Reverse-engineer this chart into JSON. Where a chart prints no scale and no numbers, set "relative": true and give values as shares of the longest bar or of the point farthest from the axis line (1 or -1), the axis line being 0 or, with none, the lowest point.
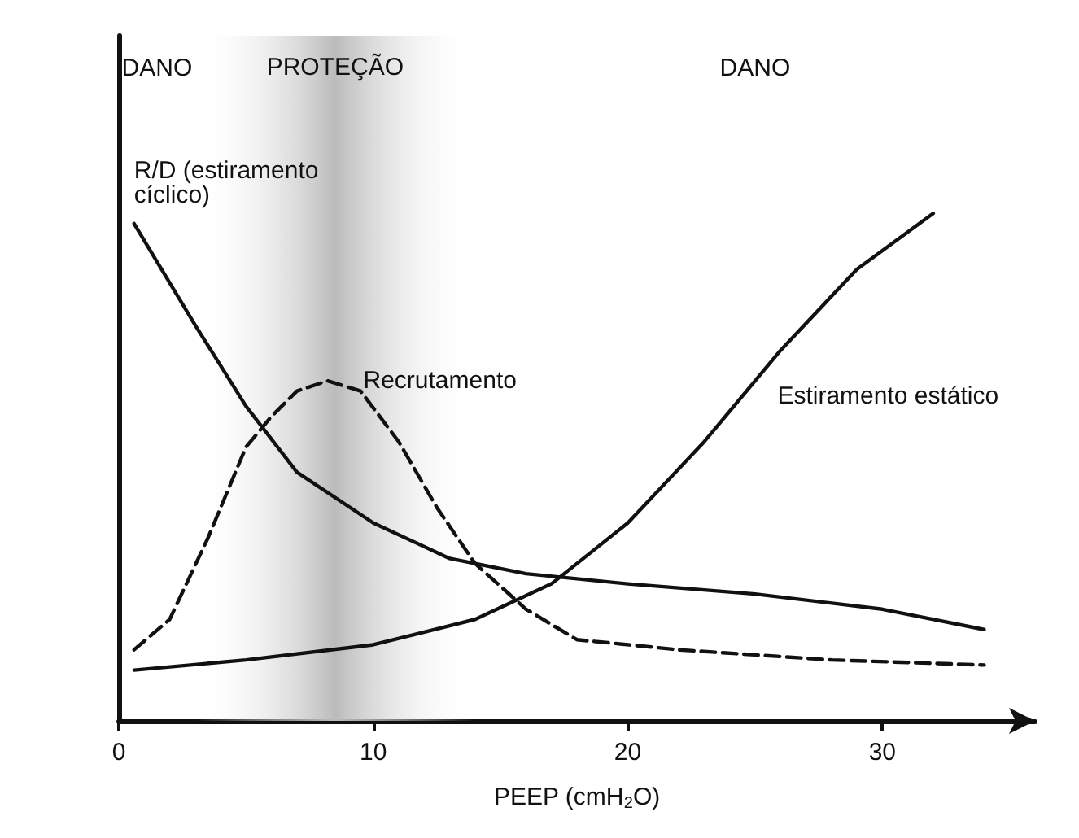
{
  "chart_data": {
    "type": "line",
    "relative": true,
    "xlabel": "PEEP (cmH$_{2}$O)",
    "xlim": [
      0,
      36
    ],
    "xticks": [
      0,
      10,
      20,
      30
    ],
    "grid": false,
    "legend": false,
    "marker": "none",
    "series": [
      {
        "name": "R/D (estiramento cíclico)",
        "color": "#111111",
        "line_style": "solid",
        "x": [
          0.6,
          3,
          5,
          7,
          10,
          13,
          16,
          20,
          25,
          30,
          34
        ],
        "values": [
          0.98,
          0.78,
          0.62,
          0.49,
          0.39,
          0.32,
          0.29,
          0.27,
          0.25,
          0.22,
          0.18
        ]
      },
      {
        "name": "Recrutamento",
        "color": "#111111",
        "line_style": "dashed",
        "x": [
          0.6,
          2,
          3.5,
          5,
          6,
          7,
          8.2,
          9.5,
          11,
          12.5,
          14,
          16,
          18,
          22,
          28,
          34
        ],
        "values": [
          0.14,
          0.2,
          0.36,
          0.54,
          0.6,
          0.65,
          0.67,
          0.65,
          0.55,
          0.42,
          0.31,
          0.22,
          0.16,
          0.14,
          0.12,
          0.11
        ]
      },
      {
        "name": "Estiramento estático",
        "color": "#111111",
        "line_style": "solid",
        "x": [
          0.6,
          5,
          10,
          14,
          17,
          20,
          23,
          26,
          29,
          32
        ],
        "values": [
          0.1,
          0.12,
          0.15,
          0.2,
          0.27,
          0.39,
          0.55,
          0.73,
          0.89,
          1.0
        ]
      }
    ],
    "bands": [
      {
        "axis": "x",
        "from": 3,
        "to": 14,
        "label": "PROTEÇÃO",
        "color": "#bbbbbb"
      }
    ],
    "annotations": [
      "DANO",
      "DANO"
    ]
  }
}
